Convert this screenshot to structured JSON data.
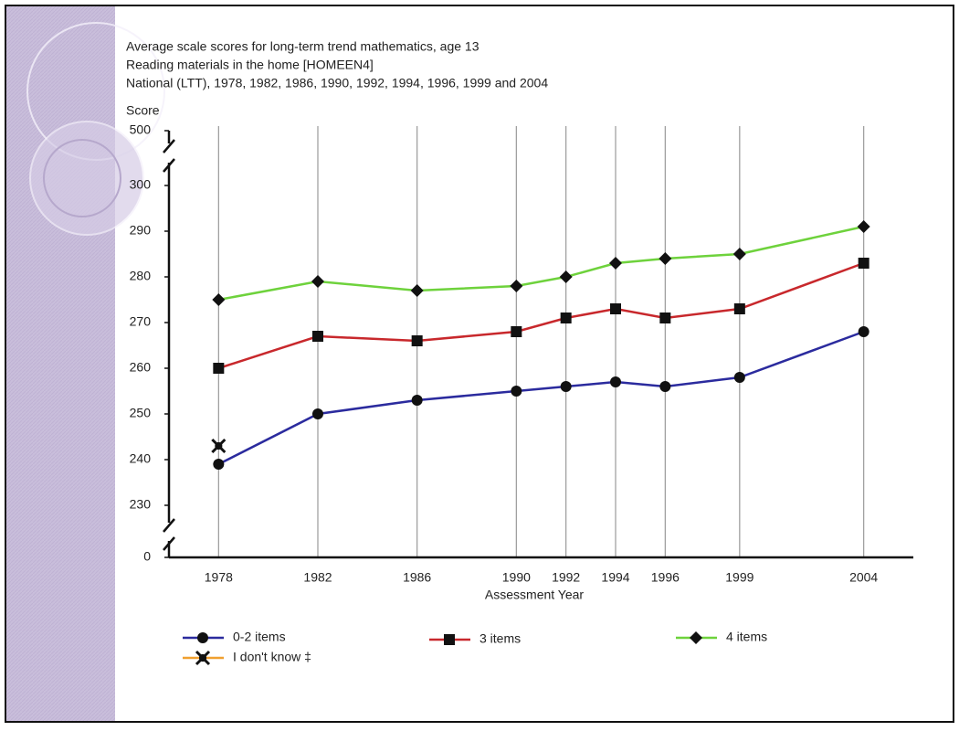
{
  "chart_data": {
    "type": "line",
    "title": "Average scale scores for long-term trend mathematics, age 13",
    "subtitle": [
      "Reading materials in the home [HOMEEN4]",
      "National (LTT), 1978, 1982, 1986, 1990, 1992, 1994, 1996, 1999 and 2004"
    ],
    "y_label": "Score",
    "x_label": "Assessment Year",
    "x": [
      1978,
      1982,
      1986,
      1990,
      1992,
      1994,
      1996,
      1999,
      2004
    ],
    "xlim": [
      1976,
      2006
    ],
    "xticks": [
      1978,
      1982,
      1986,
      1990,
      1992,
      1994,
      1996,
      1999,
      2004
    ],
    "ylim": [
      0,
      500
    ],
    "yticks": [
      0,
      230,
      240,
      250,
      260,
      270,
      280,
      290,
      300,
      500
    ],
    "broken_axis": true,
    "grid": "x",
    "series": [
      {
        "name": "0-2 items",
        "color": "#2b2b9e",
        "marker": "circle",
        "values": [
          239,
          250,
          253,
          255,
          256,
          257,
          256,
          258,
          268
        ]
      },
      {
        "name": "3 items",
        "color": "#c8282c",
        "marker": "square",
        "values": [
          260,
          267,
          266,
          268,
          271,
          273,
          271,
          273,
          283
        ]
      },
      {
        "name": "4 items",
        "color": "#6ed23c",
        "marker": "diamond",
        "values": [
          275,
          279,
          277,
          278,
          280,
          283,
          284,
          285,
          291
        ]
      },
      {
        "name": "I don't know ‡",
        "color": "#f0a030",
        "marker": "x",
        "values": [
          243,
          null,
          null,
          null,
          null,
          null,
          null,
          null,
          null
        ]
      }
    ]
  }
}
